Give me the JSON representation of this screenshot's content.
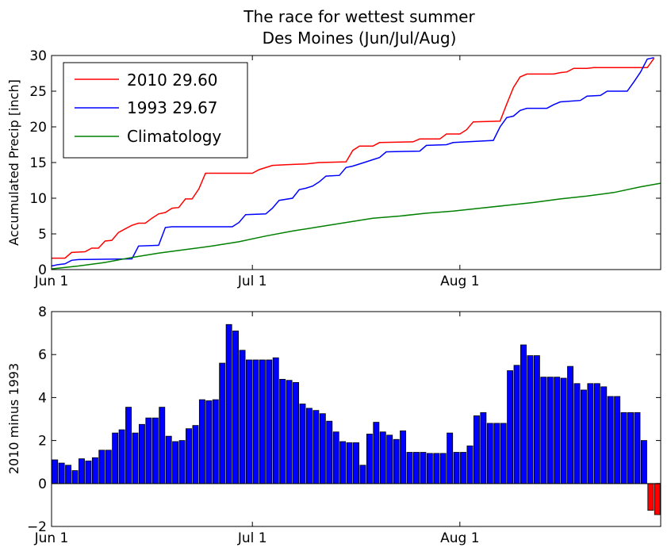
{
  "figure": {
    "title_line1": "The race for wettest summer",
    "title_line2": "Des Moines (Jun/Jul/Aug)"
  },
  "colors": {
    "series_2010": "#ff0000",
    "series_1993": "#0000ff",
    "series_climo": "#008000",
    "bar_positive": "#0000ff",
    "bar_negative": "#ff0000",
    "bar_edge": "#000000"
  },
  "chart_data": [
    {
      "type": "line",
      "title": "The race for wettest summer\nDes Moines (Jun/Jul/Aug)",
      "xlabel": "",
      "ylabel": "Accumulated Precip [inch]",
      "xlim": [
        0,
        91
      ],
      "ylim": [
        0,
        30
      ],
      "x_ticks": [
        {
          "value": 0,
          "label": "Jun 1"
        },
        {
          "value": 30,
          "label": "Jul 1"
        },
        {
          "value": 61,
          "label": "Aug 1"
        }
      ],
      "y_ticks": [
        0,
        5,
        10,
        15,
        20,
        25,
        30
      ],
      "grid": false,
      "legend": "top-left",
      "series": [
        {
          "name": "2010 29.60",
          "color": "#ff0000",
          "points": [
            [
              0,
              1.6
            ],
            [
              2,
              1.6
            ],
            [
              3,
              2.4
            ],
            [
              5,
              2.5
            ],
            [
              6,
              3.0
            ],
            [
              7,
              3.0
            ],
            [
              8,
              4.0
            ],
            [
              9,
              4.1
            ],
            [
              10,
              5.2
            ],
            [
              11,
              5.7
            ],
            [
              12,
              6.2
            ],
            [
              13,
              6.5
            ],
            [
              14,
              6.5
            ],
            [
              15,
              7.2
            ],
            [
              16,
              7.8
            ],
            [
              17,
              8.0
            ],
            [
              18,
              8.6
            ],
            [
              19,
              8.7
            ],
            [
              20,
              9.9
            ],
            [
              21,
              9.9
            ],
            [
              22,
              11.3
            ],
            [
              23,
              13.5
            ],
            [
              24,
              13.5
            ],
            [
              30,
              13.5
            ],
            [
              31,
              14.0
            ],
            [
              33,
              14.6
            ],
            [
              35,
              14.7
            ],
            [
              38,
              14.8
            ],
            [
              40,
              15.0
            ],
            [
              44,
              15.1
            ],
            [
              45,
              16.7
            ],
            [
              46,
              17.3
            ],
            [
              48,
              17.3
            ],
            [
              49,
              17.8
            ],
            [
              54,
              17.9
            ],
            [
              55,
              18.3
            ],
            [
              58,
              18.3
            ],
            [
              59,
              19.0
            ],
            [
              61,
              19.0
            ],
            [
              62,
              19.6
            ],
            [
              63,
              20.7
            ],
            [
              67,
              20.8
            ],
            [
              68,
              23.2
            ],
            [
              69,
              25.5
            ],
            [
              70,
              27.0
            ],
            [
              71,
              27.4
            ],
            [
              75,
              27.4
            ],
            [
              76,
              27.6
            ],
            [
              77,
              27.7
            ],
            [
              78,
              28.2
            ],
            [
              80,
              28.2
            ],
            [
              81,
              28.3
            ],
            [
              89,
              28.3
            ],
            [
              90,
              29.6
            ]
          ]
        },
        {
          "name": "1993 29.67",
          "color": "#0000ff",
          "points": [
            [
              0,
              0.5
            ],
            [
              1,
              0.7
            ],
            [
              2,
              0.8
            ],
            [
              3,
              1.3
            ],
            [
              4,
              1.4
            ],
            [
              12,
              1.5
            ],
            [
              13,
              3.3
            ],
            [
              16,
              3.4
            ],
            [
              17,
              5.9
            ],
            [
              18,
              6.0
            ],
            [
              27,
              6.0
            ],
            [
              28,
              6.6
            ],
            [
              29,
              7.7
            ],
            [
              32,
              7.8
            ],
            [
              33,
              8.6
            ],
            [
              34,
              9.7
            ],
            [
              36,
              10.0
            ],
            [
              37,
              11.2
            ],
            [
              38,
              11.4
            ],
            [
              39,
              11.7
            ],
            [
              40,
              12.3
            ],
            [
              41,
              13.1
            ],
            [
              43,
              13.2
            ],
            [
              44,
              14.3
            ],
            [
              45,
              14.5
            ],
            [
              47,
              15.1
            ],
            [
              48,
              15.4
            ],
            [
              49,
              15.7
            ],
            [
              50,
              16.5
            ],
            [
              55,
              16.6
            ],
            [
              56,
              17.4
            ],
            [
              59,
              17.5
            ],
            [
              60,
              17.8
            ],
            [
              64,
              18.0
            ],
            [
              66,
              18.1
            ],
            [
              67,
              20.0
            ],
            [
              68,
              21.3
            ],
            [
              69,
              21.5
            ],
            [
              70,
              22.3
            ],
            [
              71,
              22.6
            ],
            [
              74,
              22.6
            ],
            [
              75,
              23.1
            ],
            [
              76,
              23.5
            ],
            [
              79,
              23.7
            ],
            [
              80,
              24.3
            ],
            [
              82,
              24.4
            ],
            [
              83,
              25.0
            ],
            [
              86,
              25.0
            ],
            [
              87,
              26.3
            ],
            [
              88,
              27.7
            ],
            [
              89,
              29.5
            ],
            [
              90,
              29.7
            ]
          ]
        },
        {
          "name": "Climatology",
          "color": "#008000",
          "points": [
            [
              0,
              0.1
            ],
            [
              4,
              0.5
            ],
            [
              8,
              1.0
            ],
            [
              12,
              1.7
            ],
            [
              16,
              2.3
            ],
            [
              20,
              2.8
            ],
            [
              24,
              3.3
            ],
            [
              28,
              3.9
            ],
            [
              32,
              4.7
            ],
            [
              36,
              5.4
            ],
            [
              40,
              6.0
            ],
            [
              44,
              6.6
            ],
            [
              48,
              7.2
            ],
            [
              52,
              7.5
            ],
            [
              56,
              7.9
            ],
            [
              60,
              8.2
            ],
            [
              64,
              8.6
            ],
            [
              68,
              9.0
            ],
            [
              72,
              9.4
            ],
            [
              76,
              9.9
            ],
            [
              80,
              10.3
            ],
            [
              84,
              10.8
            ],
            [
              88,
              11.6
            ],
            [
              91,
              12.1
            ]
          ]
        }
      ]
    },
    {
      "type": "bar",
      "title": "",
      "xlabel": "",
      "ylabel": "2010 minus 1993",
      "xlim": [
        0,
        91
      ],
      "ylim": [
        -2,
        8
      ],
      "x_ticks": [
        {
          "value": 0,
          "label": "Jun 1"
        },
        {
          "value": 30,
          "label": "Jul 1"
        },
        {
          "value": 61,
          "label": "Aug 1"
        }
      ],
      "y_ticks": [
        {
          "value": -2,
          "label": "−2"
        },
        {
          "value": 0,
          "label": "0"
        },
        {
          "value": 2,
          "label": "2"
        },
        {
          "value": 4,
          "label": "4"
        },
        {
          "value": 6,
          "label": "6"
        },
        {
          "value": 8,
          "label": "8"
        }
      ],
      "grid": false,
      "values": [
        1.1,
        0.95,
        0.85,
        0.6,
        1.15,
        1.05,
        1.2,
        1.55,
        1.55,
        2.35,
        2.5,
        3.55,
        2.35,
        2.75,
        3.05,
        3.05,
        3.55,
        2.2,
        1.95,
        2.0,
        2.55,
        2.7,
        3.9,
        3.85,
        3.9,
        5.6,
        7.4,
        7.1,
        6.2,
        5.75,
        5.75,
        5.75,
        5.75,
        5.85,
        4.85,
        4.8,
        4.7,
        3.7,
        3.5,
        3.4,
        3.25,
        2.9,
        2.4,
        1.95,
        1.9,
        1.9,
        0.85,
        2.3,
        2.85,
        2.4,
        2.25,
        2.05,
        2.45,
        1.45,
        1.45,
        1.45,
        1.4,
        1.4,
        1.4,
        2.35,
        1.45,
        1.45,
        1.75,
        3.15,
        3.3,
        2.8,
        2.8,
        2.8,
        5.25,
        5.5,
        6.45,
        5.95,
        5.95,
        4.95,
        4.95,
        4.95,
        4.9,
        5.45,
        4.65,
        4.35,
        4.65,
        4.65,
        4.5,
        4.05,
        4.05,
        3.3,
        3.3,
        3.3,
        2.0,
        -1.25,
        -1.45
      ]
    }
  ]
}
